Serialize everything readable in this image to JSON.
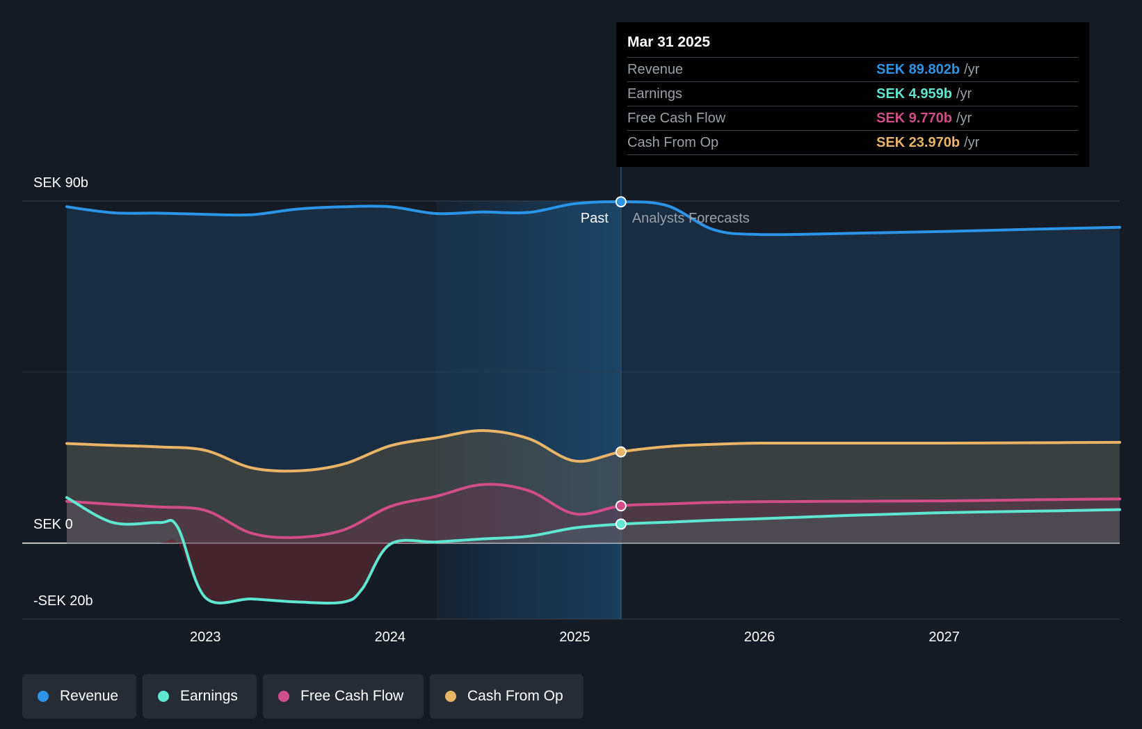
{
  "colors": {
    "revenue": "#2b94e6",
    "earnings": "#5ee6d0",
    "free_cash_flow": "#d14d87",
    "cash_from_op": "#e8b567",
    "background": "#151b24"
  },
  "chart_data": {
    "type": "line",
    "title": "",
    "unit": "SEK b",
    "ylim": [
      -20,
      90
    ],
    "y_ticks": [
      -20,
      0,
      90
    ],
    "y_tick_labels": [
      "-SEK 20b",
      "SEK 0",
      "SEK 90b"
    ],
    "x_ticks": [
      2023,
      2024,
      2025,
      2026,
      2027
    ],
    "x_tick_labels": [
      "2023",
      "2024",
      "2025",
      "2026",
      "2027"
    ],
    "xlim": [
      2022.25,
      2027.95
    ],
    "divider_x": 2025.25,
    "divider_labels": {
      "past": "Past",
      "forecast": "Analysts Forecasts"
    },
    "series": [
      {
        "name": "Revenue",
        "key": "revenue",
        "x": [
          2022.25,
          2022.5,
          2022.75,
          2023.0,
          2023.25,
          2023.5,
          2023.75,
          2024.0,
          2024.25,
          2024.5,
          2024.75,
          2025.0,
          2025.25,
          2025.5,
          2025.75,
          2026.0,
          2026.5,
          2027.0,
          2027.5,
          2027.95
        ],
        "values": [
          88.5,
          86.9,
          86.8,
          86.5,
          86.4,
          87.9,
          88.5,
          88.5,
          86.7,
          87.1,
          87.0,
          89.3,
          89.8,
          88.8,
          82.5,
          81.2,
          81.5,
          82.0,
          82.6,
          83.1
        ]
      },
      {
        "name": "Earnings",
        "key": "earnings",
        "x": [
          2022.25,
          2022.5,
          2022.75,
          2022.85,
          2023.0,
          2023.25,
          2023.5,
          2023.75,
          2023.85,
          2024.0,
          2024.25,
          2024.5,
          2024.75,
          2025.0,
          2025.25,
          2025.5,
          2025.75,
          2026.0,
          2026.5,
          2027.0,
          2027.5,
          2027.95
        ],
        "values": [
          12.0,
          5.4,
          5.4,
          4.2,
          -14.3,
          -14.7,
          -15.5,
          -15.5,
          -12.0,
          -0.3,
          0.3,
          1.1,
          1.8,
          4.0,
          5.0,
          5.5,
          6.0,
          6.4,
          7.3,
          8.0,
          8.4,
          8.8
        ]
      },
      {
        "name": "Free Cash Flow",
        "key": "free_cash_flow",
        "x": [
          2022.25,
          2022.5,
          2022.75,
          2023.0,
          2023.25,
          2023.5,
          2023.75,
          2024.0,
          2024.25,
          2024.5,
          2024.75,
          2025.0,
          2025.25,
          2025.5,
          2025.75,
          2026.0,
          2026.5,
          2027.0,
          2027.5,
          2027.95
        ],
        "values": [
          11.0,
          10.2,
          9.5,
          8.6,
          2.6,
          1.5,
          3.5,
          9.6,
          12.3,
          15.4,
          13.8,
          7.7,
          9.8,
          10.3,
          10.7,
          10.9,
          11.0,
          11.1,
          11.4,
          11.6
        ]
      },
      {
        "name": "Cash From Op",
        "key": "cash_from_op",
        "x": [
          2022.25,
          2022.5,
          2022.75,
          2023.0,
          2023.25,
          2023.5,
          2023.75,
          2024.0,
          2024.25,
          2024.5,
          2024.75,
          2025.0,
          2025.25,
          2025.5,
          2025.75,
          2026.0,
          2026.5,
          2027.0,
          2027.5,
          2027.95
        ],
        "values": [
          26.2,
          25.7,
          25.3,
          24.4,
          19.8,
          19.0,
          20.8,
          25.6,
          27.7,
          29.6,
          27.5,
          21.6,
          24.0,
          25.4,
          26.0,
          26.3,
          26.3,
          26.3,
          26.4,
          26.5
        ]
      }
    ]
  },
  "tooltip": {
    "date": "Mar 31 2025",
    "rows": [
      {
        "label": "Revenue",
        "value": "SEK 89.802b",
        "unit": "/yr"
      },
      {
        "label": "Earnings",
        "value": "SEK 4.959b",
        "unit": "/yr"
      },
      {
        "label": "Free Cash Flow",
        "value": "SEK 9.770b",
        "unit": "/yr"
      },
      {
        "label": "Cash From Op",
        "value": "SEK 23.970b",
        "unit": "/yr"
      }
    ]
  },
  "legend": [
    {
      "label": "Revenue",
      "key": "revenue"
    },
    {
      "label": "Earnings",
      "key": "earnings"
    },
    {
      "label": "Free Cash Flow",
      "key": "free_cash_flow"
    },
    {
      "label": "Cash From Op",
      "key": "cash_from_op"
    }
  ]
}
